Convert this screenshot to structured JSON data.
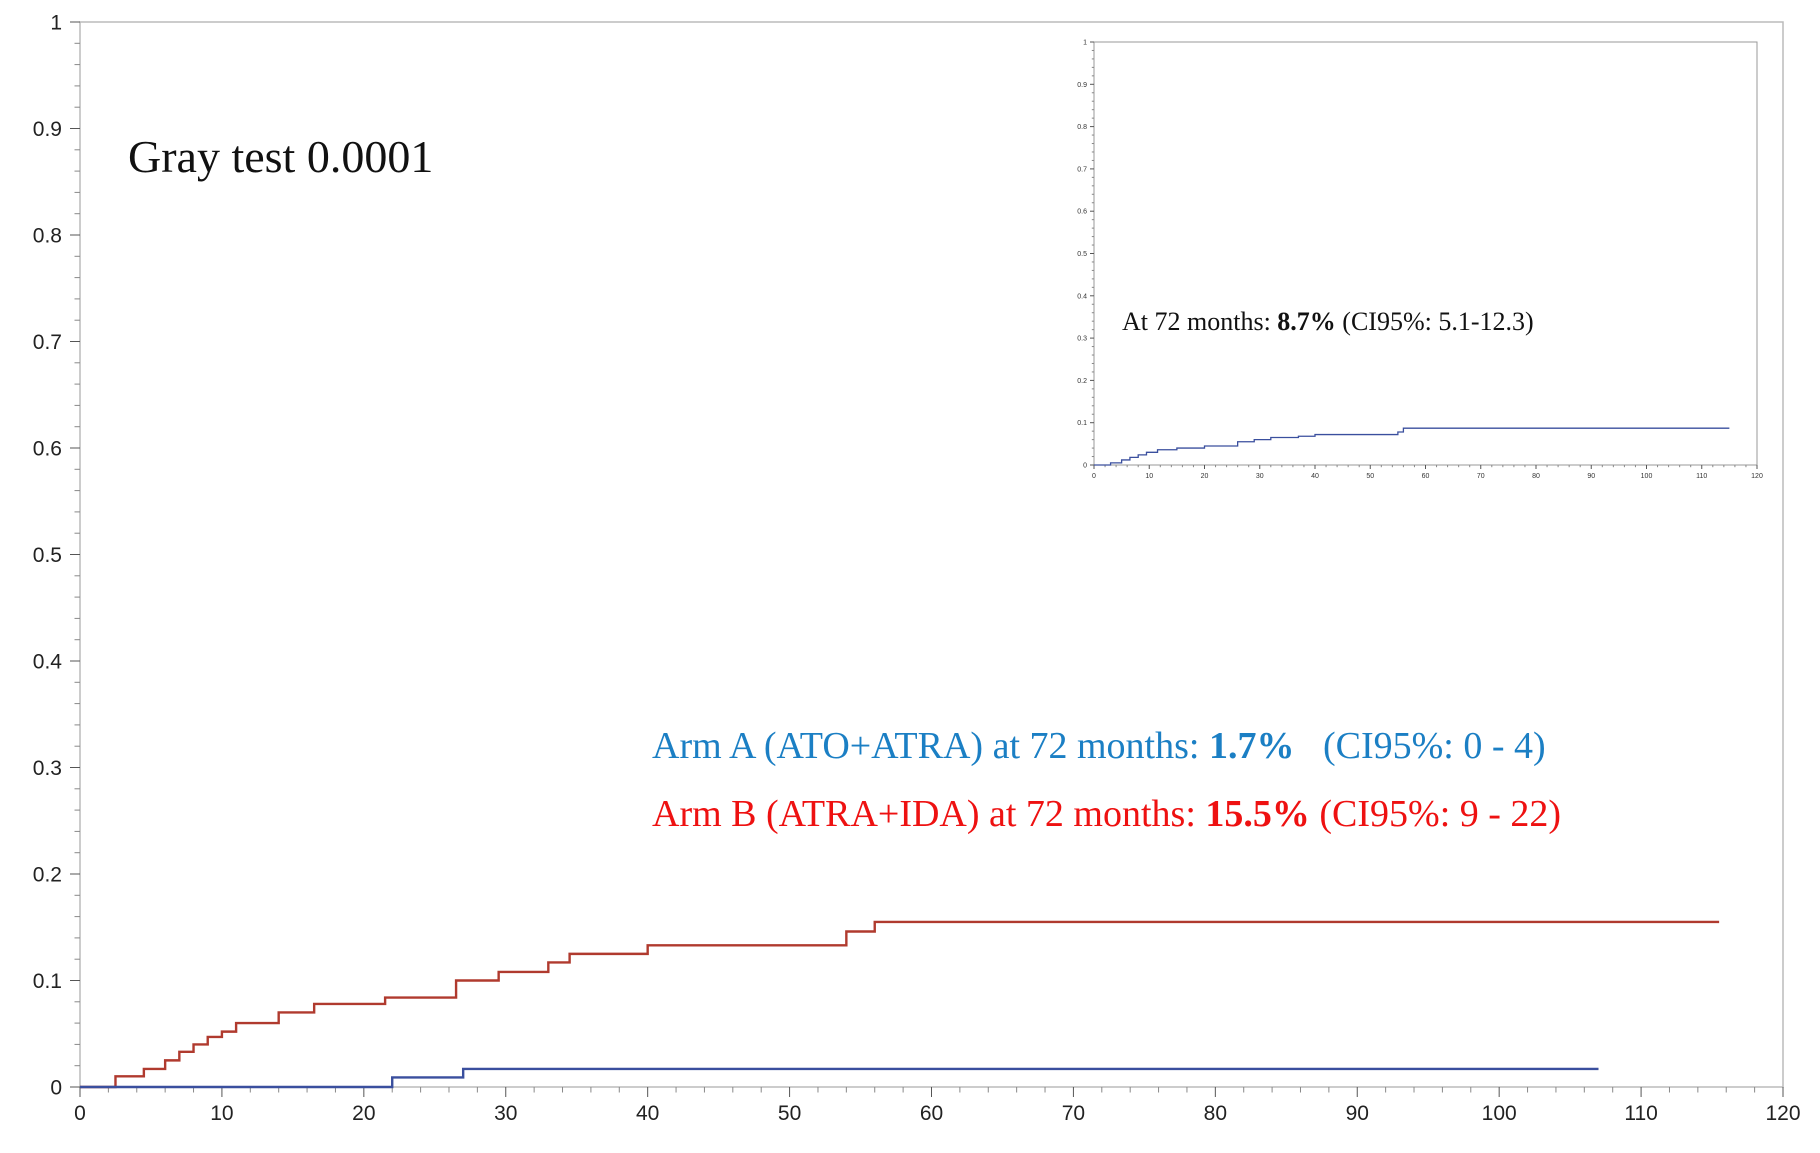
{
  "chart_data": [
    {
      "type": "line",
      "role": "main",
      "xlim": [
        0,
        120
      ],
      "ylim": [
        0,
        1
      ],
      "x_ticks": [
        0,
        10,
        20,
        30,
        40,
        50,
        60,
        70,
        80,
        90,
        100,
        110,
        120
      ],
      "y_ticks": [
        0,
        0.1,
        0.2,
        0.3,
        0.4,
        0.5,
        0.6,
        0.7,
        0.8,
        0.9,
        1
      ],
      "grid": false,
      "series": [
        {
          "color": "#b03a2e",
          "step": true,
          "points": [
            [
              0,
              0
            ],
            [
              2.5,
              0.01
            ],
            [
              4.5,
              0.017
            ],
            [
              6,
              0.025
            ],
            [
              7,
              0.033
            ],
            [
              8,
              0.04
            ],
            [
              9,
              0.047
            ],
            [
              10,
              0.052
            ],
            [
              11,
              0.06
            ],
            [
              14,
              0.07
            ],
            [
              16.5,
              0.078
            ],
            [
              21.5,
              0.084
            ],
            [
              26.5,
              0.1
            ],
            [
              29.5,
              0.108
            ],
            [
              33,
              0.117
            ],
            [
              34.5,
              0.125
            ],
            [
              40,
              0.133
            ],
            [
              54,
              0.146
            ],
            [
              56,
              0.155
            ],
            [
              115.5,
              0.155
            ]
          ]
        },
        {
          "color": "#3a4f9e",
          "step": true,
          "points": [
            [
              0,
              0
            ],
            [
              22,
              0.009
            ],
            [
              27,
              0.017
            ],
            [
              107,
              0.017
            ]
          ]
        }
      ],
      "annotations": {
        "gray_test": "Gray test 0.0001",
        "arm_a": {
          "text": "Arm A (ATO+ATRA) at 72 months: ",
          "value": "1.7%",
          "ci": "   (CI95%: 0 - 4)",
          "color": "#1b7fc4"
        },
        "arm_b": {
          "text": "Arm B (ATRA+IDA) at 72 months: ",
          "value": "15.5%",
          "ci": " (CI95%: 9 - 22)",
          "color": "#ee1111"
        }
      }
    },
    {
      "type": "line",
      "role": "inset",
      "xlim": [
        0,
        120
      ],
      "ylim": [
        0,
        1
      ],
      "x_ticks": [
        0,
        10,
        20,
        30,
        40,
        50,
        60,
        70,
        80,
        90,
        100,
        110,
        120
      ],
      "y_ticks": [
        0,
        0.1,
        0.2,
        0.3,
        0.4,
        0.5,
        0.6,
        0.7,
        0.8,
        0.9,
        1
      ],
      "grid": false,
      "series": [
        {
          "color": "#3a4f9e",
          "step": true,
          "points": [
            [
              0,
              0
            ],
            [
              3,
              0.005
            ],
            [
              5,
              0.012
            ],
            [
              6.5,
              0.018
            ],
            [
              8,
              0.024
            ],
            [
              9.5,
              0.03
            ],
            [
              11.5,
              0.036
            ],
            [
              15,
              0.04
            ],
            [
              20,
              0.045
            ],
            [
              26,
              0.055
            ],
            [
              29,
              0.06
            ],
            [
              32,
              0.065
            ],
            [
              37,
              0.068
            ],
            [
              40,
              0.072
            ],
            [
              55,
              0.078
            ],
            [
              56,
              0.087
            ],
            [
              115,
              0.087
            ]
          ]
        }
      ],
      "annotation": {
        "text": "At 72 months: ",
        "value": "8.7%",
        "ci": " (CI95%: 5.1-12.3)"
      }
    }
  ]
}
